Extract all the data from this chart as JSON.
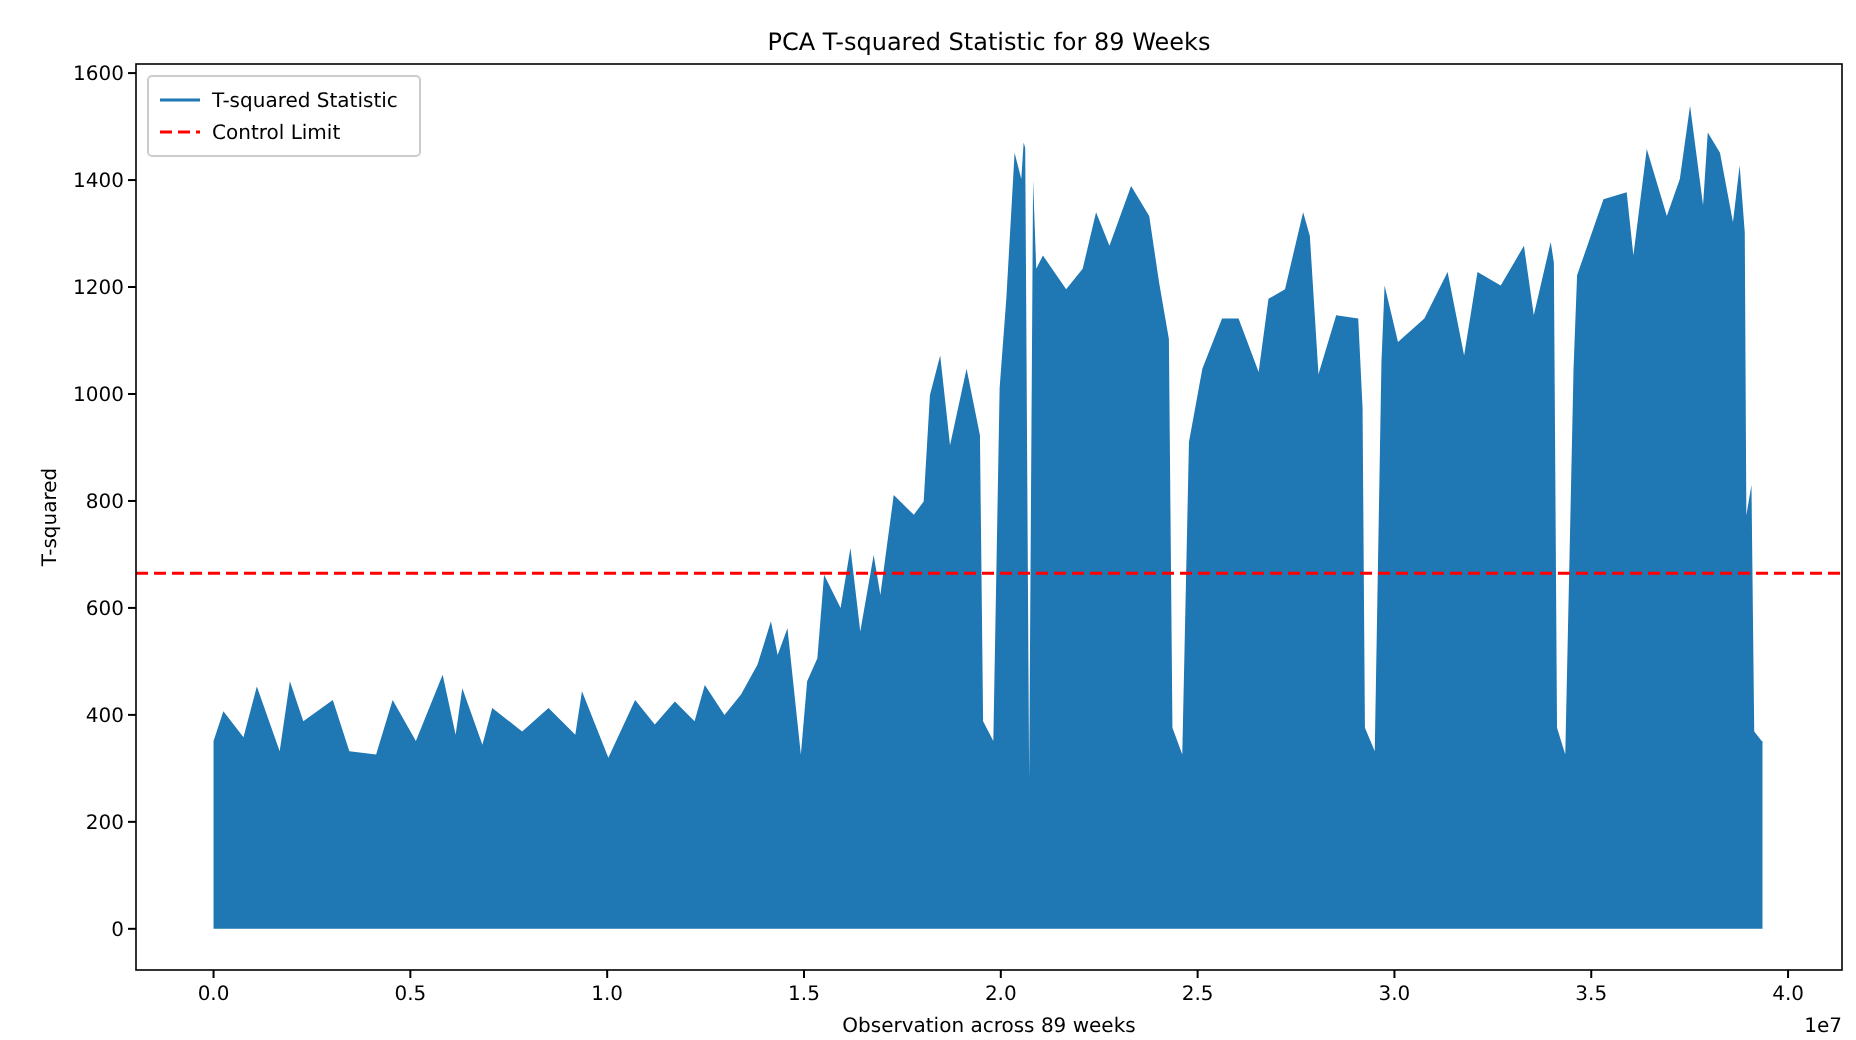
{
  "chart_data": {
    "type": "area",
    "title": "PCA T-squared Statistic for 89 Weeks",
    "xlabel": "Observation across 89 weeks",
    "ylabel": "T-squared",
    "annotations": [
      "1e7"
    ],
    "xlim": [
      -0.197,
      4.137
    ],
    "ylim": [
      -77,
      1617
    ],
    "xticks": [
      {
        "value": 0,
        "label": "0.0"
      },
      0.5,
      {
        "value": 1,
        "label": "1.0"
      },
      1.5,
      {
        "value": 2,
        "label": "2.0"
      },
      2.5,
      {
        "value": 3,
        "label": "3.0"
      },
      3.5,
      {
        "value": 4,
        "label": "4.0"
      }
    ],
    "yticks": [
      0,
      200,
      400,
      600,
      800,
      1000,
      1200,
      1400,
      1600
    ],
    "grid": false,
    "legend": "top left",
    "ref_lines": [
      {
        "axis": "y",
        "value": 665,
        "label": "Control Limit",
        "color": "#ff0000",
        "line_style": "dashed"
      }
    ],
    "series": [
      {
        "name": "T-squared Statistic",
        "color": "#1f77b4",
        "x": [
          0,
          0.025,
          0.076,
          0.11,
          0.168,
          0.194,
          0.228,
          0.303,
          0.345,
          0.413,
          0.455,
          0.514,
          0.582,
          0.615,
          0.632,
          0.683,
          0.708,
          0.784,
          0.851,
          0.919,
          0.936,
          1.003,
          1.071,
          1.121,
          1.172,
          1.222,
          1.248,
          1.298,
          1.34,
          1.382,
          1.416,
          1.433,
          1.458,
          1.492,
          1.508,
          1.534,
          1.551,
          1.593,
          1.618,
          1.643,
          1.677,
          1.694,
          1.711,
          1.728,
          1.779,
          1.804,
          1.82,
          1.846,
          1.871,
          1.913,
          1.947,
          1.955,
          1.981,
          1.997,
          2.014,
          2.035,
          2.052,
          2.058,
          2.062,
          2.072,
          2.082,
          2.09,
          2.107,
          2.166,
          2.208,
          2.242,
          2.276,
          2.331,
          2.377,
          2.402,
          2.427,
          2.436,
          2.461,
          2.478,
          2.512,
          2.562,
          2.604,
          2.655,
          2.68,
          2.722,
          2.768,
          2.785,
          2.807,
          2.852,
          2.908,
          2.919,
          2.925,
          2.95,
          2.967,
          2.975,
          3.009,
          3.076,
          3.135,
          3.177,
          3.211,
          3.27,
          3.329,
          3.354,
          3.397,
          3.405,
          3.413,
          3.434,
          3.455,
          3.464,
          3.531,
          3.59,
          3.607,
          3.641,
          3.692,
          3.725,
          3.751,
          3.784,
          3.796,
          3.827,
          3.86,
          3.877,
          3.89,
          3.894,
          3.907,
          3.914,
          3.933,
          3.935
        ],
        "values": [
          351,
          407,
          358,
          453,
          332,
          463,
          388,
          428,
          332,
          326,
          428,
          351,
          475,
          363,
          450,
          344,
          413,
          369,
          413,
          363,
          444,
          320,
          428,
          382,
          425,
          388,
          456,
          400,
          438,
          494,
          575,
          512,
          562,
          326,
          463,
          506,
          662,
          600,
          712,
          556,
          699,
          624,
          718,
          811,
          774,
          799,
          998,
          1072,
          904,
          1047,
          923,
          388,
          351,
          1011,
          1178,
          1451,
          1402,
          1470,
          1460,
          280,
          1400,
          1234,
          1259,
          1196,
          1234,
          1340,
          1277,
          1389,
          1333,
          1209,
          1103,
          376,
          326,
          910,
          1047,
          1141,
          1141,
          1041,
          1178,
          1196,
          1340,
          1296,
          1037,
          1147,
          1141,
          974,
          376,
          332,
          1060,
          1203,
          1097,
          1141,
          1228,
          1072,
          1228,
          1203,
          1277,
          1147,
          1284,
          1246,
          376,
          326,
          1047,
          1222,
          1364,
          1377,
          1259,
          1458,
          1333,
          1402,
          1539,
          1353,
          1489,
          1451,
          1321,
          1427,
          1302,
          773,
          830,
          369,
          351,
          351
        ]
      }
    ]
  }
}
